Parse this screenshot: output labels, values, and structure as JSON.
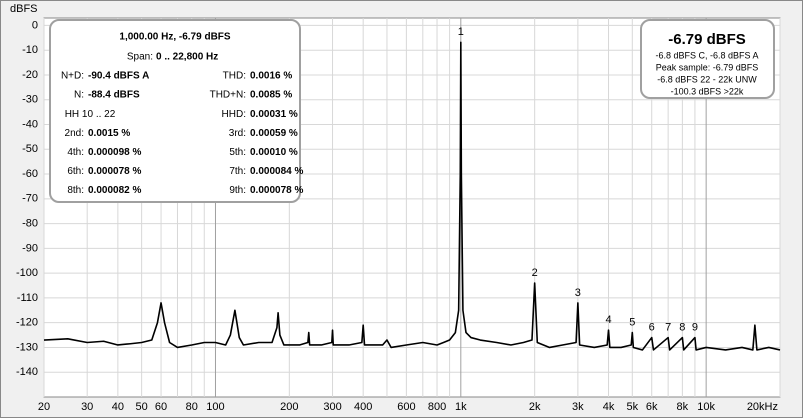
{
  "chart_data": {
    "type": "line",
    "y_label": "dBFS",
    "log_x": true,
    "grid": true,
    "color": "#000000",
    "xlim": [
      20,
      20000
    ],
    "ylim": [
      -150,
      3
    ],
    "xticks": [
      20,
      30,
      40,
      50,
      60,
      80,
      100,
      200,
      300,
      400,
      600,
      800,
      {
        "value": 1000,
        "label": "1k"
      },
      {
        "value": 2000,
        "label": "2k"
      },
      {
        "value": 3000,
        "label": "3k"
      },
      {
        "value": 4000,
        "label": "4k"
      },
      {
        "value": 5000,
        "label": "5k"
      },
      {
        "value": 6000,
        "label": "6k"
      },
      {
        "value": 8000,
        "label": "8k"
      },
      {
        "value": 10000,
        "label": "10k"
      },
      {
        "value": 20000,
        "label": "20kHz"
      }
    ],
    "x_minor_grid": [
      70,
      90,
      500,
      700,
      900,
      7000,
      9000
    ],
    "yticks": [
      0,
      -10,
      -20,
      -30,
      -40,
      -50,
      -60,
      -70,
      -80,
      -90,
      -100,
      -110,
      -120,
      -130,
      -140
    ],
    "x": [
      20,
      25,
      30,
      35,
      40,
      45,
      50,
      55,
      58,
      60,
      62,
      65,
      70,
      80,
      90,
      100,
      110,
      115,
      120,
      125,
      130,
      150,
      170,
      178,
      180,
      183,
      190,
      220,
      238,
      240,
      242,
      270,
      298,
      300,
      302,
      350,
      395,
      400,
      405,
      480,
      500,
      520,
      600,
      700,
      800,
      850,
      900,
      950,
      980,
      995,
      1000,
      1005,
      1020,
      1050,
      1100,
      1200,
      1400,
      1600,
      1800,
      1950,
      2000,
      2050,
      2300,
      2600,
      2950,
      3000,
      3050,
      3500,
      3950,
      4000,
      4050,
      4500,
      4950,
      5000,
      5050,
      5500,
      6000,
      6100,
      7000,
      7100,
      8000,
      8100,
      9000,
      9100,
      10000,
      12000,
      14000,
      15500,
      15800,
      16100,
      18000,
      20000
    ],
    "values": [
      -127,
      -126.5,
      -128,
      -127.5,
      -129,
      -128.5,
      -128,
      -127,
      -120,
      -112,
      -120,
      -128,
      -130,
      -129,
      -128,
      -128,
      -129,
      -125,
      -115,
      -126,
      -129,
      -128,
      -128,
      -122,
      -116,
      -125,
      -129,
      -129,
      -128,
      -124,
      -129,
      -129,
      -128,
      -123,
      -129,
      -129,
      -128,
      -121,
      -129,
      -129,
      -127,
      -130,
      -129,
      -128,
      -129,
      -128,
      -127,
      -124,
      -115,
      -60,
      -6.79,
      -60,
      -115,
      -124,
      -126,
      -127,
      -128,
      -129,
      -128,
      -127,
      -104,
      -128,
      -130,
      -129,
      -128,
      -112,
      -129,
      -130,
      -129,
      -123,
      -130,
      -130,
      -129,
      -124,
      -130,
      -131,
      -126,
      -131,
      -126,
      -131,
      -126,
      -131,
      -126,
      -131,
      -130,
      -131,
      -130,
      -131,
      -121,
      -131,
      -130,
      -131
    ],
    "annotations": [
      {
        "text": "1",
        "x": 1000,
        "y": -6.79
      },
      {
        "text": "2",
        "x": 2000,
        "y": -104
      },
      {
        "text": "3",
        "x": 3000,
        "y": -112
      },
      {
        "text": "4",
        "x": 4000,
        "y": -123
      },
      {
        "text": "5",
        "x": 5000,
        "y": -124
      },
      {
        "text": "6",
        "x": 6000,
        "y": -126
      },
      {
        "text": "7",
        "x": 7000,
        "y": -126
      },
      {
        "text": "8",
        "x": 8000,
        "y": -126
      },
      {
        "text": "9",
        "x": 9000,
        "y": -126
      }
    ],
    "info_box": {
      "title": "1,000.00 Hz, -6.79 dBFS",
      "span_label": "Span:",
      "span_value": "0 .. 22,800 Hz",
      "rows": [
        [
          [
            "N+D:",
            "-90.4 dBFS A"
          ],
          [
            "THD:",
            "0.0016 %"
          ]
        ],
        [
          [
            "N:",
            "-88.4 dBFS"
          ],
          [
            "THD+N:",
            "0.0085 %"
          ]
        ],
        [
          [
            "HH 10 .. 22"
          ],
          [
            "HHD:",
            "0.00031 %"
          ]
        ],
        [
          [
            "2nd:",
            "0.0015 %"
          ],
          [
            "3rd:",
            "0.00059 %"
          ]
        ],
        [
          [
            "4th:",
            "0.000098 %"
          ],
          [
            "5th:",
            "0.00010 %"
          ]
        ],
        [
          [
            "6th:",
            "0.000078 %"
          ],
          [
            "7th:",
            "0.000084 %"
          ]
        ],
        [
          [
            "8th:",
            "0.000082 %"
          ],
          [
            "9th:",
            "0.000078 %"
          ]
        ]
      ]
    },
    "level_box": {
      "title": "-6.79 dBFS",
      "lines": [
        "-6.8 dBFS C, -6.8 dBFS A",
        "Peak sample: -6.79 dBFS",
        "-6.8 dBFS 22 - 22k UNW",
        "-100.3 dBFS >22k"
      ]
    }
  }
}
